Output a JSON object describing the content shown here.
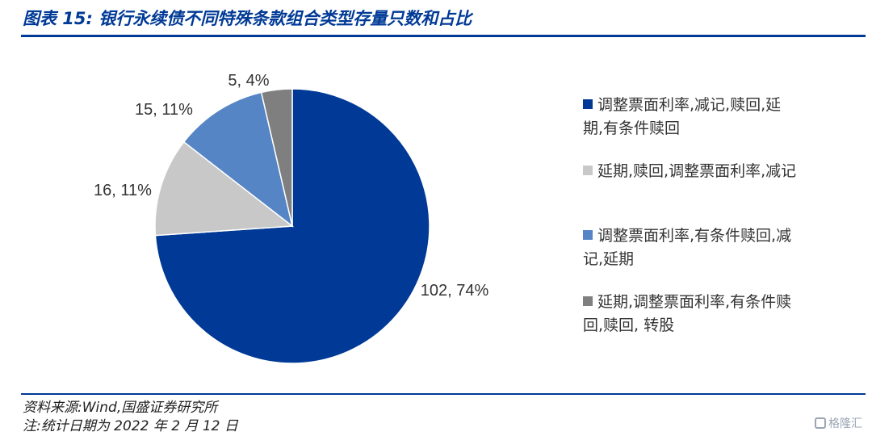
{
  "title": "图表 15:  银行永续债不同特殊条款组合类型存量只数和占比",
  "footer": {
    "source": "资料来源:Wind,国盛证券研究所",
    "note": "注:统计日期为 2022 年 2 月 12 日"
  },
  "watermark": "格隆汇",
  "chart_data": {
    "type": "pie",
    "unit": "只",
    "legend_position": "right",
    "slices": [
      {
        "name": "调整票面利率,减记,赎回,延期,有条件赎回",
        "legend_lines": [
          "调整票面利率,减记,赎回,延",
          "期,有条件赎回"
        ],
        "value": 102,
        "percent": "74%",
        "label": "102, 74%",
        "color": "#003a96"
      },
      {
        "name": "延期,赎回,调整票面利率,减记",
        "legend_lines": [
          "延期,赎回,调整票面利率,减记"
        ],
        "value": 16,
        "percent": "11%",
        "label": "16, 11%",
        "color": "#c8c8c8"
      },
      {
        "name": "调整票面利率,有条件赎回,减记,延期",
        "legend_lines": [
          "调整票面利率,有条件赎回,减",
          "记,延期"
        ],
        "value": 15,
        "percent": "11%",
        "label": "15, 11%",
        "color": "#5585c5"
      },
      {
        "name": "延期,调整票面利率,有条件赎回,赎回,转股",
        "legend_lines": [
          "延期,调整票面利率,有条件赎",
          "回,赎回, 转股"
        ],
        "value": 5,
        "percent": "4%",
        "label": "5, 4%",
        "color": "#7f7f7f"
      }
    ]
  }
}
